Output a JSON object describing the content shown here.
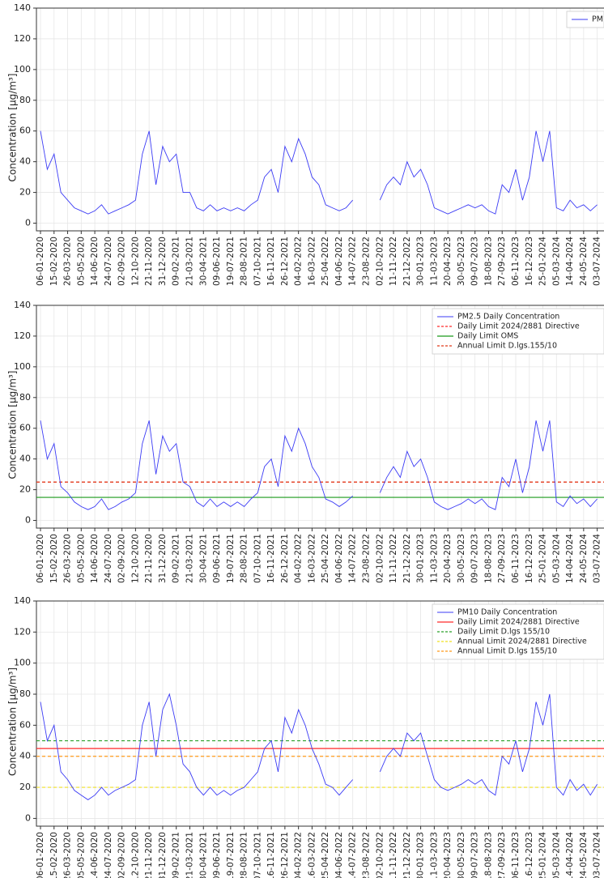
{
  "chart_data": [
    {
      "type": "line",
      "ylabel": "Concentration [µg/m³]",
      "x": [
        "06-01-2020",
        "26-01-2020",
        "15-02-2020",
        "06-03-2020",
        "26-03-2020",
        "15-04-2020",
        "05-05-2020",
        "25-05-2020",
        "14-06-2020",
        "04-07-2020",
        "24-07-2020",
        "13-08-2020",
        "02-09-2020",
        "22-09-2020",
        "12-10-2020",
        "01-11-2020",
        "21-11-2020",
        "11-12-2020",
        "31-12-2020",
        "20-01-2021",
        "09-02-2021",
        "01-03-2021",
        "21-03-2021",
        "10-04-2021",
        "30-04-2021",
        "20-05-2021",
        "09-06-2021",
        "29-06-2021",
        "19-07-2021",
        "08-08-2021",
        "28-08-2021",
        "17-09-2021",
        "07-10-2021",
        "27-10-2021",
        "16-11-2021",
        "06-12-2021",
        "26-12-2021",
        "15-01-2022",
        "04-02-2022",
        "24-02-2022",
        "16-03-2022",
        "05-04-2022",
        "25-04-2022",
        "15-05-2022",
        "04-06-2022",
        "24-06-2022",
        "14-07-2022",
        "03-08-2022",
        "23-08-2022",
        "12-09-2022",
        "02-10-2022",
        "22-10-2022",
        "11-11-2022",
        "01-12-2022",
        "21-12-2022",
        "10-01-2023",
        "30-01-2023",
        "19-02-2023",
        "11-03-2023",
        "31-03-2023",
        "20-04-2023",
        "10-05-2023",
        "30-05-2023",
        "19-06-2023",
        "09-07-2023",
        "29-07-2023",
        "18-08-2023",
        "07-09-2023",
        "27-09-2023",
        "17-10-2023",
        "06-11-2023",
        "26-11-2023",
        "16-12-2023",
        "05-01-2024",
        "25-01-2024",
        "14-02-2024",
        "05-03-2024",
        "25-03-2024",
        "14-04-2024",
        "04-05-2024",
        "24-05-2024",
        "13-06-2024",
        "03-07-2024"
      ],
      "series": [
        {
          "name": "PM1",
          "color": "#3b3bf5",
          "values": [
            60,
            35,
            45,
            20,
            15,
            10,
            8,
            6,
            8,
            12,
            6,
            8,
            10,
            12,
            15,
            45,
            60,
            25,
            50,
            40,
            45,
            20,
            20,
            10,
            8,
            12,
            8,
            10,
            8,
            10,
            8,
            12,
            15,
            30,
            35,
            20,
            50,
            40,
            55,
            45,
            30,
            25,
            12,
            10,
            8,
            10,
            15,
            null,
            null,
            null,
            15,
            25,
            30,
            25,
            40,
            30,
            35,
            25,
            10,
            8,
            6,
            8,
            10,
            12,
            10,
            12,
            8,
            6,
            25,
            20,
            35,
            15,
            30,
            60,
            40,
            60,
            10,
            8,
            15,
            10,
            12,
            8,
            12
          ]
        }
      ],
      "hlines": [],
      "xlim": [
        "06-01-2020",
        "23-07-2024"
      ],
      "xticks": [
        "06-01-2020",
        "15-02-2020",
        "26-03-2020",
        "05-05-2020",
        "14-06-2020",
        "24-07-2020",
        "02-09-2020",
        "12-10-2020",
        "21-11-2020",
        "31-12-2020",
        "09-02-2021",
        "21-03-2021",
        "30-04-2021",
        "09-06-2021",
        "19-07-2021",
        "28-08-2021",
        "07-10-2021",
        "16-11-2021",
        "26-12-2021",
        "04-02-2022",
        "16-03-2022",
        "25-04-2022",
        "04-06-2022",
        "14-07-2022",
        "23-08-2022",
        "02-10-2022",
        "11-11-2022",
        "21-12-2022",
        "30-01-2023",
        "11-03-2023",
        "20-04-2023",
        "30-05-2023",
        "09-07-2023",
        "18-08-2023",
        "27-09-2023",
        "06-11-2023",
        "16-12-2023",
        "25-01-2024",
        "05-03-2024",
        "14-04-2024",
        "24-05-2024",
        "03-07-2024"
      ],
      "ylim": [
        -5,
        140
      ],
      "yticks": [
        0,
        20,
        40,
        60,
        80,
        100,
        120,
        140
      ],
      "grid": true,
      "legend": "upper right"
    },
    {
      "type": "line",
      "ylabel": "Concentration [µg/m³]",
      "x": [
        "06-01-2020",
        "26-01-2020",
        "15-02-2020",
        "06-03-2020",
        "26-03-2020",
        "15-04-2020",
        "05-05-2020",
        "25-05-2020",
        "14-06-2020",
        "04-07-2020",
        "24-07-2020",
        "13-08-2020",
        "02-09-2020",
        "22-09-2020",
        "12-10-2020",
        "01-11-2020",
        "21-11-2020",
        "11-12-2020",
        "31-12-2020",
        "20-01-2021",
        "09-02-2021",
        "01-03-2021",
        "21-03-2021",
        "10-04-2021",
        "30-04-2021",
        "20-05-2021",
        "09-06-2021",
        "29-06-2021",
        "19-07-2021",
        "08-08-2021",
        "28-08-2021",
        "17-09-2021",
        "07-10-2021",
        "27-10-2021",
        "16-11-2021",
        "06-12-2021",
        "26-12-2021",
        "15-01-2022",
        "04-02-2022",
        "24-02-2022",
        "16-03-2022",
        "05-04-2022",
        "25-04-2022",
        "15-05-2022",
        "04-06-2022",
        "24-06-2022",
        "14-07-2022",
        "03-08-2022",
        "23-08-2022",
        "12-09-2022",
        "02-10-2022",
        "22-10-2022",
        "11-11-2022",
        "01-12-2022",
        "21-12-2022",
        "10-01-2023",
        "30-01-2023",
        "19-02-2023",
        "11-03-2023",
        "31-03-2023",
        "20-04-2023",
        "10-05-2023",
        "30-05-2023",
        "19-06-2023",
        "09-07-2023",
        "29-07-2023",
        "18-08-2023",
        "07-09-2023",
        "27-09-2023",
        "17-10-2023",
        "06-11-2023",
        "26-11-2023",
        "16-12-2023",
        "05-01-2024",
        "25-01-2024",
        "14-02-2024",
        "05-03-2024",
        "25-03-2024",
        "14-04-2024",
        "04-05-2024",
        "24-05-2024",
        "13-06-2024",
        "03-07-2024"
      ],
      "series": [
        {
          "name": "PM2.5 Daily Concentration",
          "color": "#3b3bf5",
          "values": [
            65,
            40,
            50,
            22,
            18,
            12,
            9,
            7,
            9,
            14,
            7,
            9,
            12,
            14,
            18,
            50,
            65,
            30,
            55,
            45,
            50,
            25,
            22,
            12,
            9,
            14,
            9,
            12,
            9,
            12,
            9,
            14,
            18,
            35,
            40,
            22,
            55,
            45,
            60,
            50,
            35,
            28,
            14,
            12,
            9,
            12,
            16,
            null,
            null,
            null,
            18,
            28,
            35,
            28,
            45,
            35,
            40,
            28,
            12,
            9,
            7,
            9,
            11,
            14,
            11,
            14,
            9,
            7,
            28,
            22,
            40,
            18,
            35,
            65,
            45,
            65,
            12,
            9,
            16,
            11,
            14,
            9,
            14
          ]
        }
      ],
      "hlines": [
        {
          "name": "Daily Limit 2024/2881 Directive",
          "color": "#ff2a2a",
          "value": 25,
          "style": "dashed"
        },
        {
          "name": "Daily Limit OMS",
          "color": "#1a9a1a",
          "value": 15,
          "style": "solid"
        },
        {
          "name": "Annual Limit D.lgs.155/10",
          "color": "#e03a1a",
          "value": 25,
          "style": "dashed"
        }
      ],
      "xlim": [
        "06-01-2020",
        "23-07-2024"
      ],
      "xticks": [
        "06-01-2020",
        "15-02-2020",
        "26-03-2020",
        "05-05-2020",
        "14-06-2020",
        "24-07-2020",
        "02-09-2020",
        "12-10-2020",
        "21-11-2020",
        "31-12-2020",
        "09-02-2021",
        "21-03-2021",
        "30-04-2021",
        "09-06-2021",
        "19-07-2021",
        "28-08-2021",
        "07-10-2021",
        "16-11-2021",
        "26-12-2021",
        "04-02-2022",
        "16-03-2022",
        "25-04-2022",
        "04-06-2022",
        "14-07-2022",
        "23-08-2022",
        "02-10-2022",
        "11-11-2022",
        "21-12-2022",
        "30-01-2023",
        "11-03-2023",
        "20-04-2023",
        "30-05-2023",
        "09-07-2023",
        "18-08-2023",
        "27-09-2023",
        "06-11-2023",
        "16-12-2023",
        "25-01-2024",
        "05-03-2024",
        "14-04-2024",
        "24-05-2024",
        "03-07-2024"
      ],
      "ylim": [
        -5,
        140
      ],
      "yticks": [
        0,
        20,
        40,
        60,
        80,
        100,
        120,
        140
      ],
      "grid": true,
      "legend": "upper right"
    },
    {
      "type": "line",
      "ylabel": "Concentration [µg/m³]",
      "x": [
        "06-01-2020",
        "26-01-2020",
        "15-02-2020",
        "06-03-2020",
        "26-03-2020",
        "15-04-2020",
        "05-05-2020",
        "25-05-2020",
        "14-06-2020",
        "04-07-2020",
        "24-07-2020",
        "13-08-2020",
        "02-09-2020",
        "22-09-2020",
        "12-10-2020",
        "01-11-2020",
        "21-11-2020",
        "11-12-2020",
        "31-12-2020",
        "20-01-2021",
        "09-02-2021",
        "01-03-2021",
        "21-03-2021",
        "10-04-2021",
        "30-04-2021",
        "20-05-2021",
        "09-06-2021",
        "29-06-2021",
        "19-07-2021",
        "08-08-2021",
        "28-08-2021",
        "17-09-2021",
        "07-10-2021",
        "27-10-2021",
        "16-11-2021",
        "06-12-2021",
        "26-12-2021",
        "15-01-2022",
        "04-02-2022",
        "24-02-2022",
        "16-03-2022",
        "05-04-2022",
        "25-04-2022",
        "15-05-2022",
        "04-06-2022",
        "24-06-2022",
        "14-07-2022",
        "03-08-2022",
        "23-08-2022",
        "12-09-2022",
        "02-10-2022",
        "22-10-2022",
        "11-11-2022",
        "01-12-2022",
        "21-12-2022",
        "10-01-2023",
        "30-01-2023",
        "19-02-2023",
        "11-03-2023",
        "31-03-2023",
        "20-04-2023",
        "10-05-2023",
        "30-05-2023",
        "19-06-2023",
        "09-07-2023",
        "29-07-2023",
        "18-08-2023",
        "07-09-2023",
        "27-09-2023",
        "17-10-2023",
        "06-11-2023",
        "26-11-2023",
        "16-12-2023",
        "05-01-2024",
        "25-01-2024",
        "14-02-2024",
        "05-03-2024",
        "25-03-2024",
        "14-04-2024",
        "04-05-2024",
        "24-05-2024",
        "13-06-2024",
        "03-07-2024"
      ],
      "series": [
        {
          "name": "PM10 Daily Concentration",
          "color": "#3b3bf5",
          "values": [
            75,
            50,
            60,
            30,
            25,
            18,
            15,
            12,
            15,
            20,
            15,
            18,
            20,
            22,
            25,
            60,
            75,
            40,
            70,
            80,
            60,
            35,
            30,
            20,
            15,
            20,
            15,
            18,
            15,
            18,
            20,
            25,
            30,
            45,
            50,
            30,
            65,
            55,
            70,
            60,
            45,
            35,
            22,
            20,
            15,
            20,
            25,
            null,
            null,
            null,
            30,
            40,
            45,
            40,
            55,
            50,
            55,
            40,
            25,
            20,
            18,
            20,
            22,
            25,
            22,
            25,
            18,
            15,
            40,
            35,
            50,
            30,
            45,
            75,
            60,
            80,
            20,
            15,
            25,
            18,
            22,
            15,
            22
          ]
        }
      ],
      "hlines": [
        {
          "name": "Daily Limit 2024/2881 Directive",
          "color": "#ff2a2a",
          "value": 45,
          "style": "solid"
        },
        {
          "name": "Daily Limit D.lgs 155/10",
          "color": "#2aa02a",
          "value": 50,
          "style": "dashed"
        },
        {
          "name": "Annual Limit 2024/2881 Directive",
          "color": "#f0e020",
          "value": 20,
          "style": "dashed"
        },
        {
          "name": "Annual Limit D.lgs 155/10",
          "color": "#ff9a1a",
          "value": 40,
          "style": "dashed"
        }
      ],
      "xlim": [
        "06-01-2020",
        "23-07-2024"
      ],
      "xticks": [
        "06-01-2020",
        "15-02-2020",
        "26-03-2020",
        "05-05-2020",
        "14-06-2020",
        "24-07-2020",
        "02-09-2020",
        "12-10-2020",
        "21-11-2020",
        "31-12-2020",
        "09-02-2021",
        "21-03-2021",
        "30-04-2021",
        "09-06-2021",
        "19-07-2021",
        "28-08-2021",
        "07-10-2021",
        "16-11-2021",
        "26-12-2021",
        "04-02-2022",
        "16-03-2022",
        "25-04-2022",
        "04-06-2022",
        "14-07-2022",
        "23-08-2022",
        "02-10-2022",
        "11-11-2022",
        "21-12-2022",
        "30-01-2023",
        "11-03-2023",
        "20-04-2023",
        "30-05-2023",
        "09-07-2023",
        "18-08-2023",
        "27-09-2023",
        "06-11-2023",
        "16-12-2023",
        "25-01-2024",
        "05-03-2024",
        "14-04-2024",
        "24-05-2024",
        "03-07-2024"
      ],
      "ylim": [
        -5,
        140
      ],
      "yticks": [
        0,
        20,
        40,
        60,
        80,
        100,
        120,
        140
      ],
      "grid": true,
      "legend": "upper right"
    }
  ]
}
